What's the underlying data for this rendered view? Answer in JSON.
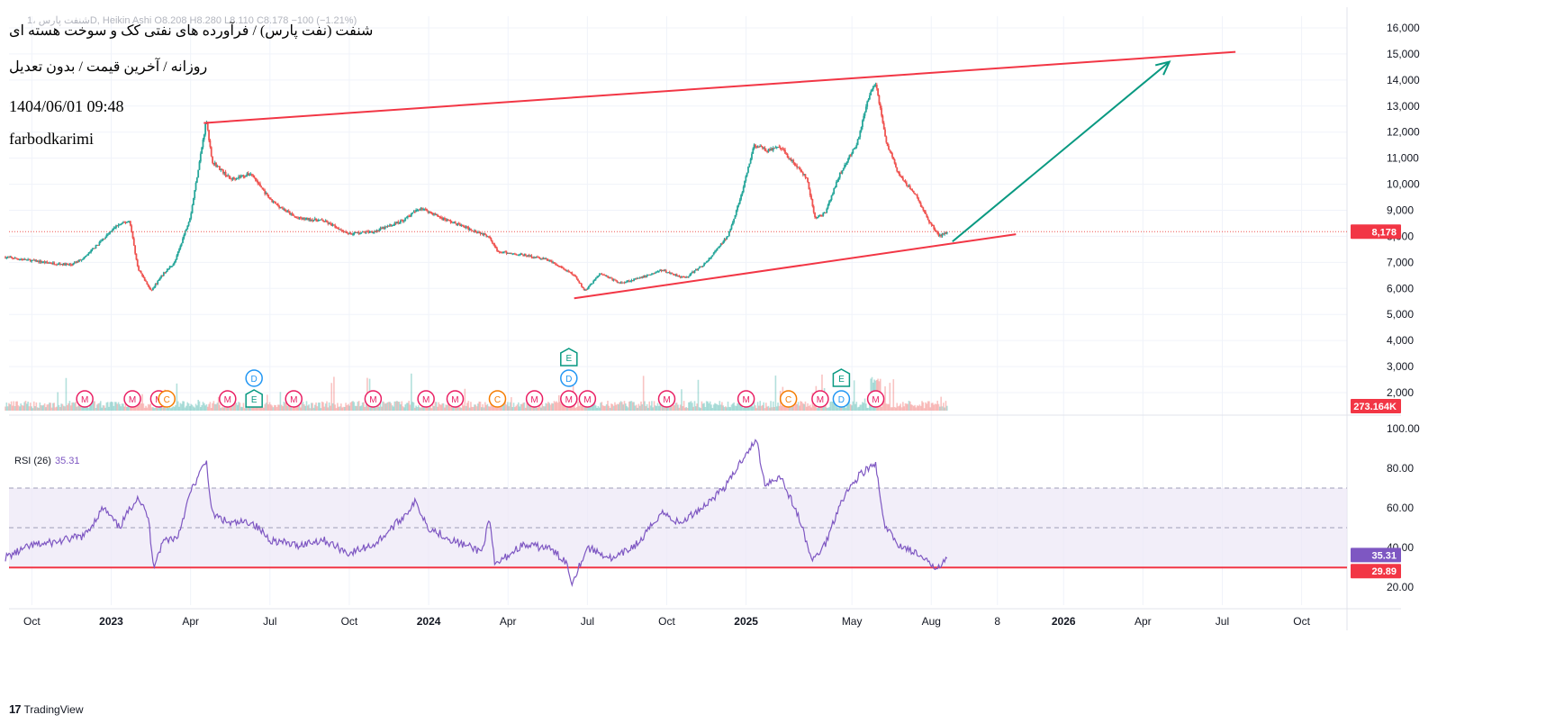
{
  "header": {
    "symbol_line": "شنفت پارس ،1D, Heikin Ashi",
    "ohlc_line": "O8.208 H8.280 L8.110 C8.178 −100 (−1.21%)"
  },
  "overlay": {
    "title": "شنفت (نفت پارس) / فرآورده های نفتی کک و سوخت هسته ای",
    "subtitle": "روزانه / آخرین قیمت / بدون تعدیل",
    "date": "1404/06/01 09:48",
    "author": "farbodkarimi"
  },
  "branding": {
    "logo_text": "TradingView",
    "logo_mark": "17"
  },
  "colors": {
    "up": "#26a69a",
    "down": "#ef5350",
    "trendline": "#f23645",
    "arrow": "#089981",
    "rsi_line": "#7e57c2",
    "rsi_band": "#ede7f6",
    "last_price_bg": "#f23645",
    "rsi_badge": "#7e57c2",
    "events_dividend": "#2196f3",
    "events_earnings": "#089981",
    "events_split": "#f57c00",
    "events_misc": "#e91e63"
  },
  "chart_data": [
    {
      "type": "candlestick",
      "style": "Heikin Ashi",
      "interval": "1D",
      "price_axis": {
        "ylim": [
          1500,
          16500
        ],
        "ticks": [
          "16,000",
          "15,000",
          "14,000",
          "13,000",
          "12,000",
          "11,000",
          "10,000",
          "9,000",
          "8,000",
          "7,000",
          "6,000",
          "5,000",
          "4,000",
          "3,000",
          "2,000"
        ],
        "tick_values": [
          16000,
          15000,
          14000,
          13000,
          12000,
          11000,
          10000,
          9000,
          8000,
          7000,
          6000,
          5000,
          4000,
          3000,
          2000
        ]
      },
      "time_axis": {
        "labels": [
          "Oct",
          "2023",
          "Apr",
          "Jul",
          "Oct",
          "2024",
          "Apr",
          "Jul",
          "Oct",
          "2025",
          "May",
          "Aug",
          "8",
          "2026",
          "Apr",
          "Jul",
          "Oct"
        ],
        "label_months": [
          1,
          4,
          7,
          10,
          13,
          16,
          19,
          22,
          25,
          28,
          32,
          35,
          37.5,
          40,
          43,
          46,
          49
        ]
      },
      "series_anchors": [
        {
          "m": 0,
          "p": 7200
        },
        {
          "m": 1.5,
          "p": 7000
        },
        {
          "m": 2.5,
          "p": 6900
        },
        {
          "m": 3.0,
          "p": 7200
        },
        {
          "m": 3.5,
          "p": 7700
        },
        {
          "m": 4.2,
          "p": 8400
        },
        {
          "m": 4.7,
          "p": 8600
        },
        {
          "m": 5.0,
          "p": 6800
        },
        {
          "m": 5.5,
          "p": 5900
        },
        {
          "m": 6.0,
          "p": 6600
        },
        {
          "m": 6.4,
          "p": 7000
        },
        {
          "m": 7.0,
          "p": 8800
        },
        {
          "m": 7.6,
          "p": 12500
        },
        {
          "m": 7.8,
          "p": 10900
        },
        {
          "m": 8.5,
          "p": 10200
        },
        {
          "m": 9.3,
          "p": 10400
        },
        {
          "m": 10.0,
          "p": 9400
        },
        {
          "m": 11.0,
          "p": 8700
        },
        {
          "m": 12.0,
          "p": 8600
        },
        {
          "m": 13.0,
          "p": 8100
        },
        {
          "m": 14.0,
          "p": 8200
        },
        {
          "m": 15.0,
          "p": 8600
        },
        {
          "m": 15.7,
          "p": 9100
        },
        {
          "m": 16.5,
          "p": 8700
        },
        {
          "m": 17.5,
          "p": 8300
        },
        {
          "m": 18.3,
          "p": 8000
        },
        {
          "m": 18.6,
          "p": 7400
        },
        {
          "m": 19.5,
          "p": 7300
        },
        {
          "m": 20.5,
          "p": 7100
        },
        {
          "m": 21.5,
          "p": 6500
        },
        {
          "m": 21.9,
          "p": 5900
        },
        {
          "m": 22.5,
          "p": 6600
        },
        {
          "m": 23.2,
          "p": 6200
        },
        {
          "m": 24.0,
          "p": 6400
        },
        {
          "m": 24.8,
          "p": 6700
        },
        {
          "m": 25.7,
          "p": 6400
        },
        {
          "m": 26.5,
          "p": 7000
        },
        {
          "m": 27.3,
          "p": 8000
        },
        {
          "m": 27.8,
          "p": 9500
        },
        {
          "m": 28.3,
          "p": 11500
        },
        {
          "m": 28.8,
          "p": 11300
        },
        {
          "m": 29.3,
          "p": 11400
        },
        {
          "m": 29.9,
          "p": 10700
        },
        {
          "m": 30.3,
          "p": 10200
        },
        {
          "m": 30.6,
          "p": 8700
        },
        {
          "m": 31.0,
          "p": 8900
        },
        {
          "m": 31.5,
          "p": 10300
        },
        {
          "m": 32.2,
          "p": 11600
        },
        {
          "m": 32.7,
          "p": 13600
        },
        {
          "m": 32.9,
          "p": 13900
        },
        {
          "m": 33.3,
          "p": 11600
        },
        {
          "m": 33.8,
          "p": 10300
        },
        {
          "m": 34.4,
          "p": 9600
        },
        {
          "m": 34.9,
          "p": 8600
        },
        {
          "m": 35.3,
          "p": 8000
        },
        {
          "m": 35.6,
          "p": 8178
        }
      ],
      "last_price": {
        "value": 8178,
        "label": "8,178"
      },
      "volume_label": "273.164K",
      "trendlines": [
        {
          "from": {
            "m": 7.5,
            "p": 12350
          },
          "to": {
            "m": 46.5,
            "p": 15080
          }
        },
        {
          "from": {
            "m": 21.5,
            "p": 5620
          },
          "to": {
            "m": 38.2,
            "p": 8080
          }
        }
      ],
      "projection_arrow": {
        "from": {
          "m": 35.8,
          "p": 7800
        },
        "to": {
          "m": 44.0,
          "p": 14700
        }
      },
      "events": [
        {
          "m": 3.0,
          "row": 0,
          "kind": "M"
        },
        {
          "m": 4.8,
          "row": 0,
          "kind": "M"
        },
        {
          "m": 5.8,
          "row": 0,
          "kind": "M"
        },
        {
          "m": 6.1,
          "row": 0,
          "kind": "C"
        },
        {
          "m": 8.4,
          "row": 0,
          "kind": "M"
        },
        {
          "m": 9.4,
          "row": 0,
          "kind": "E"
        },
        {
          "m": 9.4,
          "row": 1,
          "kind": "D"
        },
        {
          "m": 10.9,
          "row": 0,
          "kind": "M"
        },
        {
          "m": 13.9,
          "row": 0,
          "kind": "M"
        },
        {
          "m": 15.9,
          "row": 0,
          "kind": "M"
        },
        {
          "m": 17.0,
          "row": 0,
          "kind": "M"
        },
        {
          "m": 18.6,
          "row": 0,
          "kind": "C"
        },
        {
          "m": 20.0,
          "row": 0,
          "kind": "M"
        },
        {
          "m": 21.3,
          "row": 0,
          "kind": "M"
        },
        {
          "m": 21.3,
          "row": 1,
          "kind": "D"
        },
        {
          "m": 21.3,
          "row": 2,
          "kind": "E"
        },
        {
          "m": 22.0,
          "row": 0,
          "kind": "M"
        },
        {
          "m": 25.0,
          "row": 0,
          "kind": "M"
        },
        {
          "m": 28.0,
          "row": 0,
          "kind": "M"
        },
        {
          "m": 29.6,
          "row": 0,
          "kind": "C"
        },
        {
          "m": 30.8,
          "row": 0,
          "kind": "M"
        },
        {
          "m": 31.6,
          "row": 0,
          "kind": "D"
        },
        {
          "m": 31.6,
          "row": 1,
          "kind": "E"
        },
        {
          "m": 32.9,
          "row": 0,
          "kind": "M"
        }
      ]
    },
    {
      "type": "line",
      "name": "RSI (26)",
      "label": "RSI (26)",
      "current_value": "35.31",
      "band_label": "29.89",
      "ylim": [
        12,
        100
      ],
      "ticks": [
        "100.00",
        "80.00",
        "60.00",
        "40.00",
        "20.00"
      ],
      "tick_values": [
        100,
        80,
        60,
        40,
        20
      ],
      "band_upper": 70,
      "band_mid": 50,
      "band_lower": 30,
      "horizontal_line": 29.89,
      "series_anchors": [
        {
          "m": 0,
          "t": 35
        },
        {
          "m": 1.0,
          "t": 41
        },
        {
          "m": 2.0,
          "t": 43
        },
        {
          "m": 3.0,
          "t": 46
        },
        {
          "m": 3.7,
          "t": 60
        },
        {
          "m": 4.3,
          "t": 50
        },
        {
          "m": 5.0,
          "t": 66
        },
        {
          "m": 5.4,
          "t": 55
        },
        {
          "m": 5.6,
          "t": 31
        },
        {
          "m": 6.0,
          "t": 44
        },
        {
          "m": 6.5,
          "t": 45
        },
        {
          "m": 7.0,
          "t": 68
        },
        {
          "m": 7.6,
          "t": 84
        },
        {
          "m": 7.8,
          "t": 57
        },
        {
          "m": 8.5,
          "t": 52
        },
        {
          "m": 9.3,
          "t": 53
        },
        {
          "m": 10.0,
          "t": 44
        },
        {
          "m": 11.0,
          "t": 41
        },
        {
          "m": 12.0,
          "t": 44
        },
        {
          "m": 13.0,
          "t": 37
        },
        {
          "m": 14.0,
          "t": 42
        },
        {
          "m": 15.0,
          "t": 55
        },
        {
          "m": 15.5,
          "t": 63
        },
        {
          "m": 16.0,
          "t": 50
        },
        {
          "m": 17.0,
          "t": 43
        },
        {
          "m": 18.0,
          "t": 38
        },
        {
          "m": 18.3,
          "t": 54
        },
        {
          "m": 18.5,
          "t": 31
        },
        {
          "m": 19.5,
          "t": 41
        },
        {
          "m": 20.5,
          "t": 40
        },
        {
          "m": 21.2,
          "t": 33
        },
        {
          "m": 21.4,
          "t": 22
        },
        {
          "m": 22.0,
          "t": 40
        },
        {
          "m": 23.0,
          "t": 34
        },
        {
          "m": 24.0,
          "t": 43
        },
        {
          "m": 24.8,
          "t": 58
        },
        {
          "m": 25.5,
          "t": 52
        },
        {
          "m": 26.5,
          "t": 62
        },
        {
          "m": 27.3,
          "t": 72
        },
        {
          "m": 28.0,
          "t": 88
        },
        {
          "m": 28.4,
          "t": 94
        },
        {
          "m": 28.7,
          "t": 72
        },
        {
          "m": 29.3,
          "t": 76
        },
        {
          "m": 30.0,
          "t": 55
        },
        {
          "m": 30.5,
          "t": 33
        },
        {
          "m": 31.0,
          "t": 42
        },
        {
          "m": 31.6,
          "t": 64
        },
        {
          "m": 32.3,
          "t": 77
        },
        {
          "m": 32.9,
          "t": 82
        },
        {
          "m": 33.2,
          "t": 52
        },
        {
          "m": 33.7,
          "t": 42
        },
        {
          "m": 34.3,
          "t": 38
        },
        {
          "m": 34.9,
          "t": 32
        },
        {
          "m": 35.2,
          "t": 30
        },
        {
          "m": 35.6,
          "t": 35.31
        }
      ]
    }
  ]
}
